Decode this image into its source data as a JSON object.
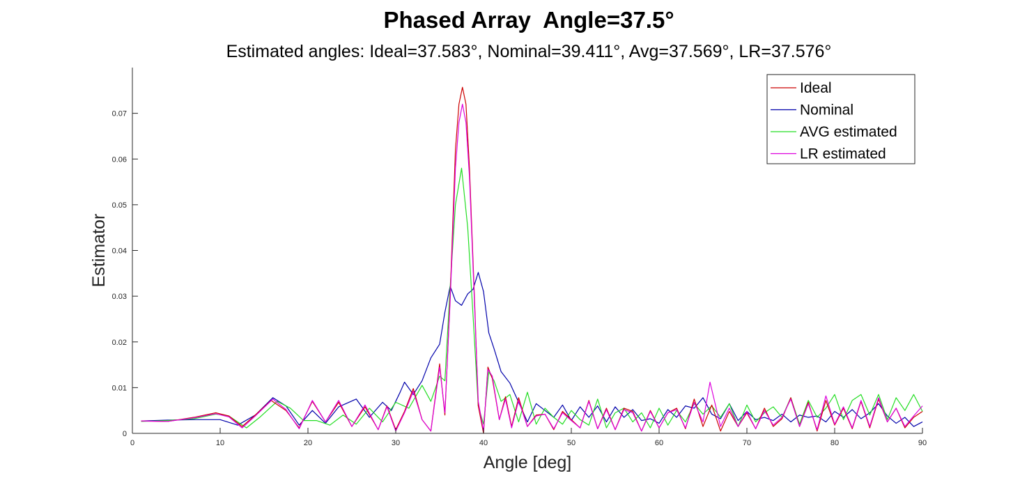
{
  "chart_data": {
    "type": "line",
    "title": "Phased Array  Angle=37.5°",
    "subtitle": "Estimated angles: Ideal=37.583°, Nominal=39.411°, Avg=37.569°, LR=37.576°",
    "xlabel": "Angle [deg]",
    "ylabel": "Estimator",
    "xlim": [
      0,
      90
    ],
    "ylim": [
      0,
      0.08
    ],
    "xticks": [
      0,
      10,
      20,
      30,
      40,
      50,
      60,
      70,
      80,
      90
    ],
    "yticks": [
      0,
      0.01,
      0.02,
      0.03,
      0.04,
      0.05,
      0.06,
      0.07
    ],
    "ytick_labels": [
      "0",
      "0.01",
      "0.02",
      "0.03",
      "0.04",
      "0.05",
      "0.06",
      "0.07"
    ],
    "grid": false,
    "legend_position": "top-right",
    "series": [
      {
        "name": "Ideal",
        "color": "#cc0000",
        "x": [
          1,
          4,
          7,
          9.5,
          11,
          12.5,
          14,
          15.8,
          17.5,
          19,
          20.5,
          22,
          23.5,
          25,
          26.5,
          28,
          29,
          30,
          31,
          32,
          33,
          34,
          35,
          35.6,
          36.2,
          36.8,
          37.2,
          37.6,
          38,
          38.4,
          39,
          39.4,
          40,
          40.5,
          41,
          41.8,
          42.5,
          43.2,
          44,
          45,
          46,
          47,
          48,
          49,
          50,
          51,
          52,
          53,
          54,
          55,
          56,
          57,
          58,
          59,
          60,
          61,
          62,
          63,
          64,
          65,
          66,
          67,
          68,
          69,
          70,
          71,
          72,
          73,
          74,
          75,
          76,
          77,
          78,
          79,
          80,
          81,
          82,
          83,
          84,
          85,
          86,
          87,
          88,
          89,
          90
        ],
        "y": [
          0.0027,
          0.0026,
          0.0035,
          0.0045,
          0.0038,
          0.0015,
          0.004,
          0.0072,
          0.005,
          0.0012,
          0.007,
          0.0025,
          0.0068,
          0.0015,
          0.0058,
          0.0008,
          0.006,
          0.0008,
          0.0048,
          0.0098,
          0.003,
          0.0005,
          0.0152,
          0.004,
          0.03,
          0.062,
          0.072,
          0.0757,
          0.072,
          0.058,
          0.028,
          0.006,
          0.0,
          0.0145,
          0.012,
          0.003,
          0.008,
          0.0015,
          0.0078,
          0.0015,
          0.004,
          0.0042,
          0.0008,
          0.0048,
          0.003,
          0.0012,
          0.0072,
          0.001,
          0.0055,
          0.0008,
          0.0055,
          0.0048,
          0.0005,
          0.005,
          0.0012,
          0.0045,
          0.0055,
          0.001,
          0.0075,
          0.0015,
          0.0062,
          0.0005,
          0.0048,
          0.0015,
          0.0045,
          0.001,
          0.0055,
          0.0015,
          0.0032,
          0.0078,
          0.0015,
          0.0068,
          0.0005,
          0.0072,
          0.0018,
          0.0055,
          0.001,
          0.007,
          0.0012,
          0.0075,
          0.0025,
          0.0055,
          0.0012,
          0.0035,
          0.0048
        ]
      },
      {
        "name": "Nominal",
        "color": "#0000aa",
        "x": [
          1,
          4,
          7,
          10,
          12,
          14,
          16,
          17.5,
          19,
          20.5,
          22,
          23.5,
          25.5,
          27,
          28.5,
          29.5,
          30.5,
          31,
          32,
          33,
          34,
          35,
          35.6,
          36.2,
          36.8,
          37.5,
          38.2,
          38.8,
          39.4,
          40,
          40.6,
          41.2,
          42,
          43,
          44,
          45,
          46,
          47,
          48,
          49,
          50,
          51,
          52,
          53,
          54,
          55,
          56,
          57,
          58,
          59,
          60,
          61,
          62,
          63,
          64,
          65,
          66,
          67,
          68,
          69,
          70,
          71,
          72,
          73,
          74,
          75,
          76,
          77,
          78,
          79,
          80,
          81,
          82,
          83,
          84,
          85,
          86,
          87,
          88,
          89,
          90
        ],
        "y": [
          0.0027,
          0.0029,
          0.003,
          0.003,
          0.0018,
          0.004,
          0.0078,
          0.006,
          0.0018,
          0.005,
          0.0022,
          0.0058,
          0.0075,
          0.0035,
          0.0068,
          0.005,
          0.009,
          0.0112,
          0.0085,
          0.0115,
          0.0165,
          0.0195,
          0.0265,
          0.0322,
          0.029,
          0.028,
          0.0305,
          0.0315,
          0.0352,
          0.031,
          0.022,
          0.0185,
          0.0135,
          0.011,
          0.0068,
          0.0025,
          0.0065,
          0.005,
          0.0035,
          0.0062,
          0.0028,
          0.0058,
          0.0035,
          0.006,
          0.0025,
          0.0058,
          0.0035,
          0.0052,
          0.0028,
          0.0032,
          0.0022,
          0.0052,
          0.0035,
          0.006,
          0.0055,
          0.0078,
          0.0042,
          0.0032,
          0.0065,
          0.0028,
          0.0048,
          0.003,
          0.0035,
          0.0028,
          0.0042,
          0.0025,
          0.004,
          0.0035,
          0.0038,
          0.0025,
          0.0048,
          0.0035,
          0.0052,
          0.0032,
          0.0045,
          0.0065,
          0.0038,
          0.0022,
          0.0035,
          0.0015,
          0.0025
        ]
      },
      {
        "name": "AVG estimated",
        "color": "#22dd22",
        "x": [
          1,
          4,
          7,
          9.5,
          11,
          13,
          14.5,
          16.5,
          18,
          19.5,
          21,
          22.5,
          24,
          25.5,
          27,
          28.5,
          30,
          31.5,
          33,
          34,
          35,
          35.6,
          36.2,
          36.8,
          37.5,
          38.2,
          38.8,
          39.4,
          40,
          40.6,
          41.2,
          42,
          43,
          44,
          45,
          46,
          47,
          48,
          49,
          50,
          51,
          52,
          53,
          54,
          55,
          56,
          57,
          58,
          59,
          60,
          61,
          62,
          63,
          64,
          65,
          66,
          67,
          68,
          69,
          70,
          71,
          72,
          73,
          74,
          75,
          76,
          77,
          78,
          79,
          80,
          81,
          82,
          83,
          84,
          85,
          86,
          87,
          88,
          89,
          90
        ],
        "y": [
          0.0026,
          0.0028,
          0.0032,
          0.0042,
          0.0038,
          0.0012,
          0.0035,
          0.007,
          0.0055,
          0.0028,
          0.0028,
          0.0018,
          0.004,
          0.002,
          0.0055,
          0.0025,
          0.0068,
          0.0055,
          0.0105,
          0.007,
          0.0125,
          0.0115,
          0.032,
          0.05,
          0.058,
          0.045,
          0.026,
          0.006,
          0.002,
          0.0135,
          0.0115,
          0.007,
          0.0085,
          0.0025,
          0.009,
          0.002,
          0.0055,
          0.0035,
          0.002,
          0.005,
          0.003,
          0.0018,
          0.0075,
          0.0012,
          0.0045,
          0.0055,
          0.0025,
          0.0045,
          0.0012,
          0.0055,
          0.0018,
          0.005,
          0.0025,
          0.0065,
          0.0042,
          0.006,
          0.0035,
          0.0065,
          0.0015,
          0.0062,
          0.0025,
          0.0045,
          0.0058,
          0.0035,
          0.0078,
          0.002,
          0.0072,
          0.0035,
          0.0055,
          0.0085,
          0.003,
          0.0072,
          0.0085,
          0.004,
          0.0085,
          0.003,
          0.0078,
          0.005,
          0.0085,
          0.0048
        ]
      },
      {
        "name": "LR estimated",
        "color": "#dd00dd",
        "x": [
          1,
          4,
          7,
          9.5,
          11,
          12.5,
          14,
          16,
          17.5,
          19,
          20.5,
          22,
          23.5,
          25,
          26.5,
          28,
          29,
          30,
          31,
          32,
          33,
          34,
          35,
          35.6,
          36.2,
          36.8,
          37.2,
          37.6,
          38,
          38.4,
          39,
          39.4,
          40,
          40.5,
          41,
          41.8,
          42.5,
          43.2,
          44,
          45,
          46,
          47,
          48,
          49,
          50,
          51,
          52,
          53,
          54,
          55,
          56,
          57,
          58,
          59,
          60,
          61,
          62,
          63,
          64,
          65,
          65.8,
          67,
          68,
          69,
          70,
          71,
          72,
          73,
          74,
          75,
          76,
          77,
          78,
          79,
          80,
          81,
          82,
          83,
          84,
          85,
          86,
          87,
          88,
          89,
          90
        ],
        "y": [
          0.0027,
          0.0026,
          0.0034,
          0.0043,
          0.0036,
          0.0012,
          0.0038,
          0.0075,
          0.0052,
          0.001,
          0.0072,
          0.0025,
          0.0072,
          0.0015,
          0.0062,
          0.0008,
          0.0058,
          0.0005,
          0.0045,
          0.0092,
          0.003,
          0.0005,
          0.0145,
          0.0045,
          0.029,
          0.058,
          0.068,
          0.072,
          0.068,
          0.056,
          0.027,
          0.007,
          0.0005,
          0.014,
          0.0125,
          0.003,
          0.0075,
          0.0012,
          0.0072,
          0.0015,
          0.0038,
          0.0042,
          0.001,
          0.0045,
          0.0028,
          0.0012,
          0.007,
          0.001,
          0.0052,
          0.0008,
          0.0052,
          0.0045,
          0.0005,
          0.0048,
          0.0012,
          0.0045,
          0.0052,
          0.0012,
          0.0068,
          0.0025,
          0.0112,
          0.0015,
          0.0055,
          0.0015,
          0.0048,
          0.001,
          0.005,
          0.0018,
          0.0035,
          0.0075,
          0.0015,
          0.0065,
          0.0008,
          0.0082,
          0.002,
          0.0058,
          0.0012,
          0.0072,
          0.0015,
          0.0078,
          0.0025,
          0.0055,
          0.0015,
          0.0038,
          0.006
        ]
      }
    ]
  }
}
